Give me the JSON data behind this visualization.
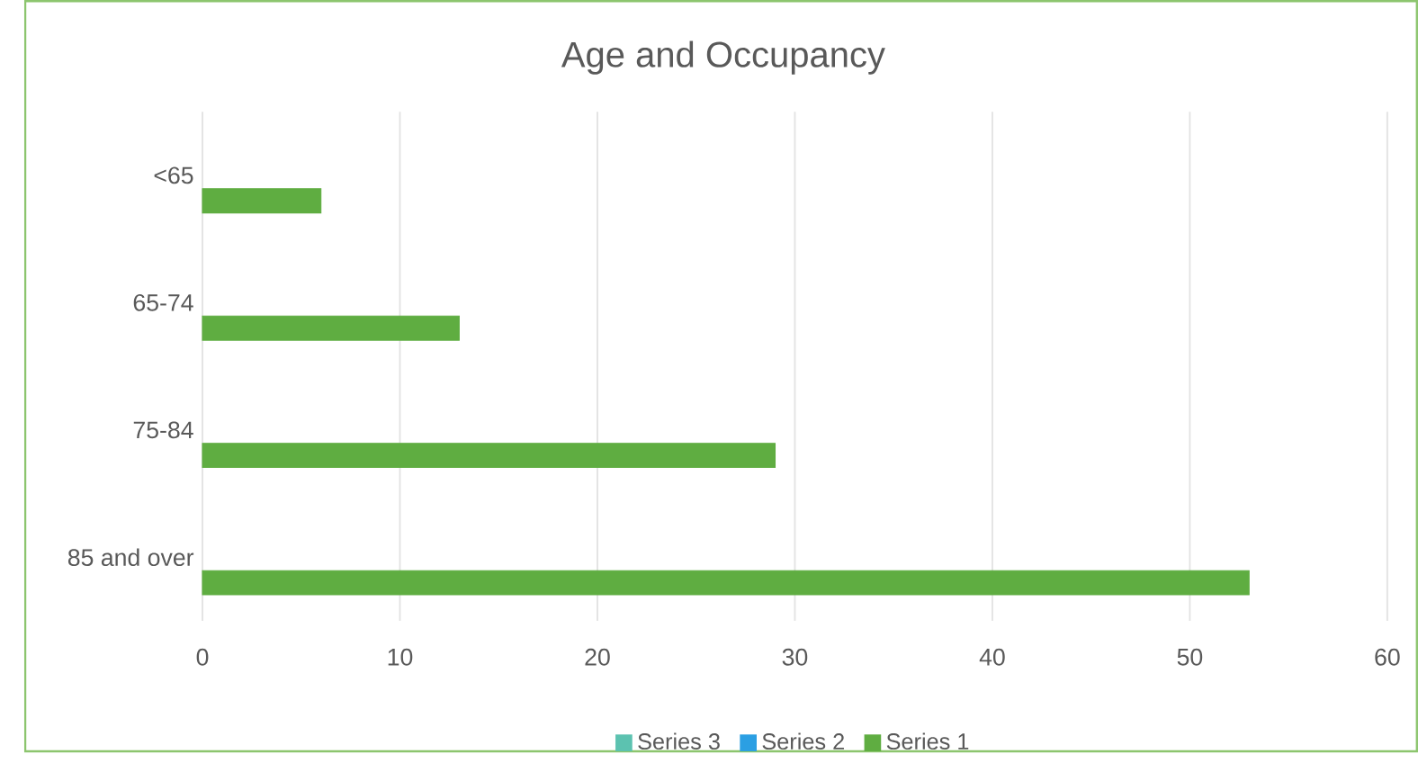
{
  "chart_data": {
    "type": "bar",
    "title": "Age and Occupancy",
    "orientation": "horizontal",
    "categories": [
      "<65",
      "65-74",
      "75-84",
      "85 and over"
    ],
    "series": [
      {
        "name": "Series 1",
        "color": "#5fad41",
        "values": [
          6,
          13,
          29,
          53
        ]
      },
      {
        "name": "Series 2",
        "color": "#2b9fe3",
        "values": [
          null,
          null,
          null,
          null
        ]
      },
      {
        "name": "Series 3",
        "color": "#5cc2b0",
        "values": [
          null,
          null,
          null,
          null
        ]
      }
    ],
    "xlim": [
      0,
      60
    ],
    "xticks": [
      0,
      10,
      20,
      30,
      40,
      50,
      60
    ],
    "grid": "x",
    "legend": "bottom"
  }
}
